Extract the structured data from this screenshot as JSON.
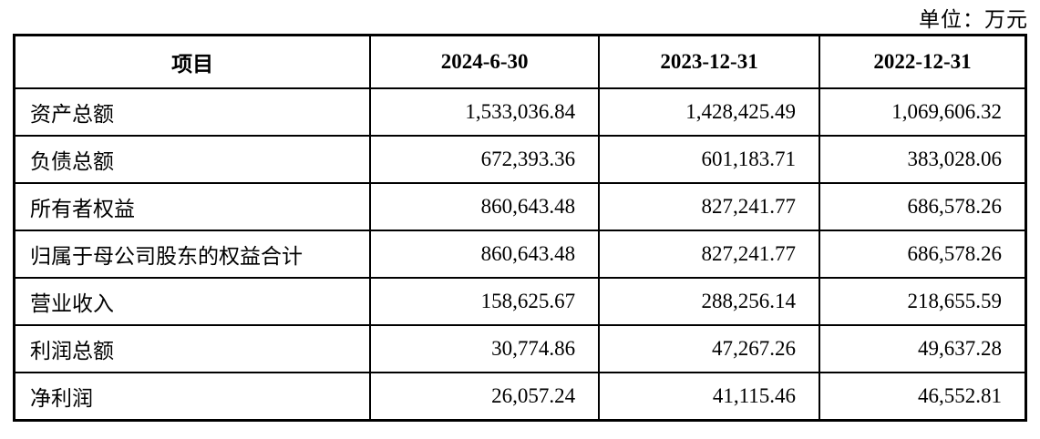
{
  "unit_note": "单位：万元",
  "table": {
    "columns": [
      "项目",
      "2024-6-30",
      "2023-12-31",
      "2022-12-31"
    ],
    "rows": [
      {
        "label": "资产总额",
        "values": [
          "1,533,036.84",
          "1,428,425.49",
          "1,069,606.32"
        ]
      },
      {
        "label": "负债总额",
        "values": [
          "672,393.36",
          "601,183.71",
          "383,028.06"
        ]
      },
      {
        "label": "所有者权益",
        "values": [
          "860,643.48",
          "827,241.77",
          "686,578.26"
        ]
      },
      {
        "label": "归属于母公司股东的权益合计",
        "values": [
          "860,643.48",
          "827,241.77",
          "686,578.26"
        ]
      },
      {
        "label": "营业收入",
        "values": [
          "158,625.67",
          "288,256.14",
          "218,655.59"
        ]
      },
      {
        "label": "利润总额",
        "values": [
          "30,774.86",
          "47,267.26",
          "49,637.28"
        ]
      },
      {
        "label": "净利润",
        "values": [
          "26,057.24",
          "41,115.46",
          "46,552.81"
        ]
      }
    ]
  }
}
